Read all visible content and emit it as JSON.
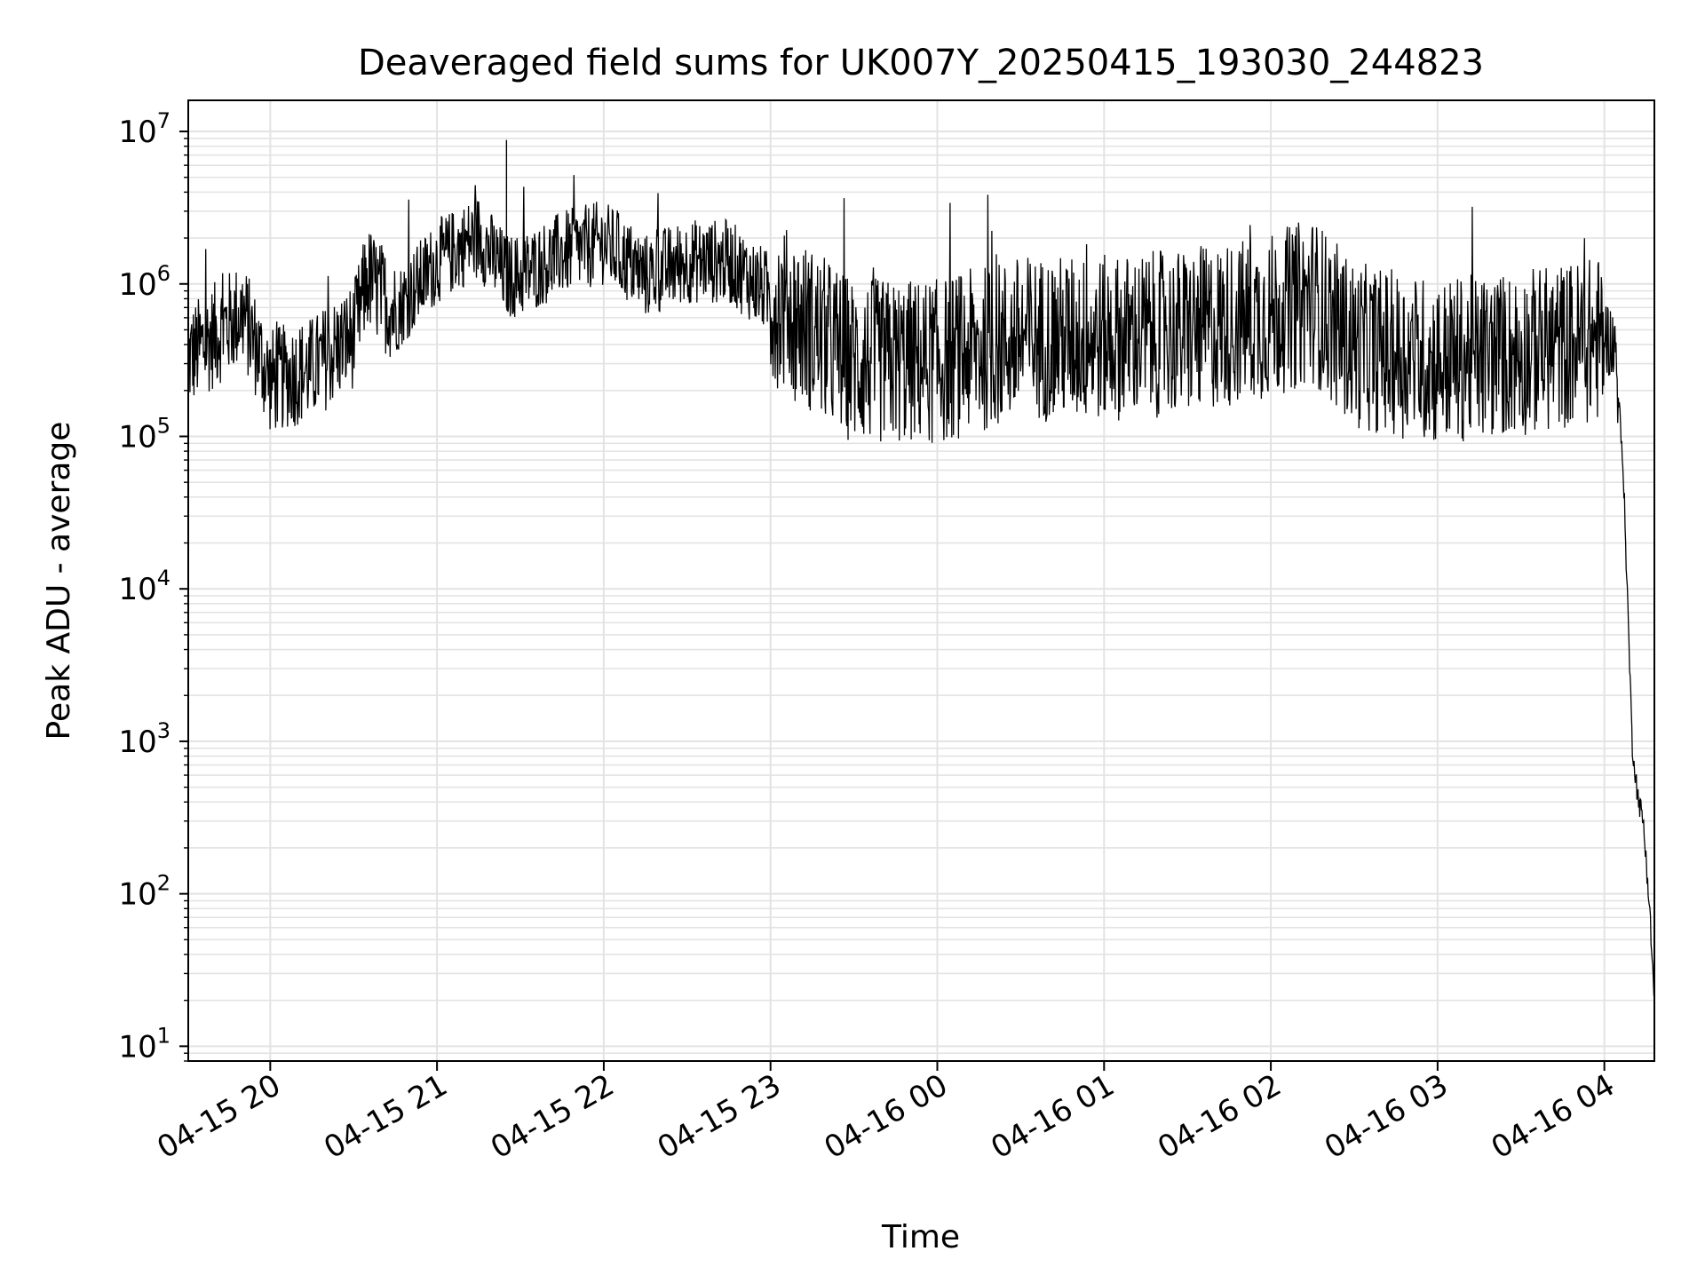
{
  "chart_data": {
    "type": "line",
    "title": "Deaveraged field sums for UK007Y_20250415_193030_244823",
    "xlabel": "Time",
    "ylabel": "Peak ADU - average",
    "yscale": "log",
    "ylim": [
      8,
      16000000
    ],
    "xlim": [
      "2025-04-15 19:30:30",
      "2025-04-16 04:18:00"
    ],
    "grid": true,
    "line_color": "#000000",
    "grid_color": "#e3e3e3",
    "x_ticks": [
      "04-15 20",
      "04-15 21",
      "04-15 22",
      "04-15 23",
      "04-16 00",
      "04-16 01",
      "04-16 02",
      "04-16 03",
      "04-16 04"
    ],
    "y_ticks": [
      {
        "value": 10,
        "base": "10",
        "exp": "1"
      },
      {
        "value": 100,
        "base": "10",
        "exp": "2"
      },
      {
        "value": 1000,
        "base": "10",
        "exp": "3"
      },
      {
        "value": 10000,
        "base": "10",
        "exp": "4"
      },
      {
        "value": 100000,
        "base": "10",
        "exp": "5"
      },
      {
        "value": 1000000,
        "base": "10",
        "exp": "6"
      },
      {
        "value": 10000000,
        "base": "10",
        "exp": "7"
      }
    ],
    "series": [
      {
        "x": [
          "2025-04-15 19:30:30",
          "2025-04-15 19:40",
          "2025-04-15 19:50",
          "2025-04-15 20:00",
          "2025-04-15 20:15",
          "2025-04-15 20:30",
          "2025-04-15 20:35",
          "2025-04-15 20:45",
          "2025-04-15 21:00",
          "2025-04-15 21:15",
          "2025-04-15 21:25",
          "2025-04-15 21:30",
          "2025-04-15 21:45",
          "2025-04-15 22:00",
          "2025-04-15 22:15",
          "2025-04-15 22:30",
          "2025-04-15 22:45",
          "2025-04-15 23:00",
          "2025-04-15 23:30",
          "2025-04-16 00:00",
          "2025-04-16 00:30",
          "2025-04-16 01:00",
          "2025-04-16 01:30",
          "2025-04-16 02:00",
          "2025-04-16 02:15",
          "2025-04-16 02:30",
          "2025-04-16 03:00",
          "2025-04-16 03:30",
          "2025-04-16 04:00",
          "2025-04-16 04:04",
          "2025-04-16 04:07",
          "2025-04-16 04:10",
          "2025-04-16 04:12",
          "2025-04-16 04:14",
          "2025-04-16 04:16",
          "2025-04-16 04:18"
        ],
        "y": [
          350000,
          500000,
          700000,
          250000,
          300000,
          500000,
          1200000,
          700000,
          1500000,
          2200000,
          1200000,
          1200000,
          1700000,
          2000000,
          1200000,
          1500000,
          1500000,
          900000,
          350000,
          350000,
          500000,
          500000,
          550000,
          700000,
          900000,
          450000,
          350000,
          400000,
          500000,
          400000,
          50000,
          1000,
          450,
          300,
          100,
          20
        ]
      }
    ]
  }
}
